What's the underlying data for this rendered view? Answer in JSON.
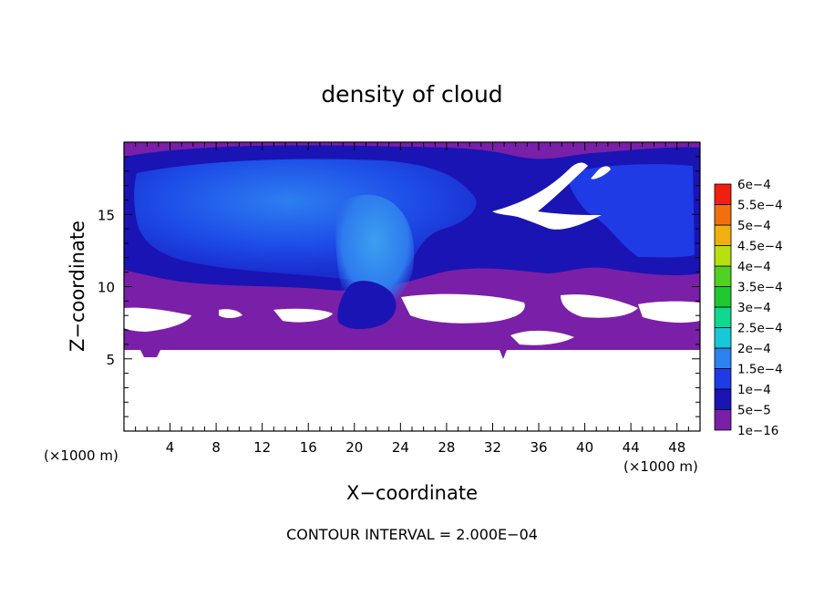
{
  "chart_data": {
    "type": "heatmap",
    "title": "density of cloud",
    "xlabel": "X−coordinate",
    "ylabel": "Z−coordinate",
    "x_unit_label": "(×1000 m)",
    "y_unit_label": "(×1000 m)",
    "footer": "CONTOUR INTERVAL = 2.000E−04",
    "xlim": [
      0,
      50
    ],
    "ylim": [
      0,
      20
    ],
    "x_ticks": [
      4,
      8,
      12,
      16,
      20,
      24,
      28,
      32,
      36,
      40,
      44,
      48
    ],
    "y_ticks": [
      5,
      10,
      15
    ],
    "colorbar": {
      "levels": [
        "1e−16",
        "5e−5",
        "1e−4",
        "1.5e−4",
        "2e−4",
        "2.5e−4",
        "3e−4",
        "3.5e−4",
        "4e−4",
        "4.5e−4",
        "5e−4",
        "5.5e−4",
        "6e−4"
      ],
      "colors": [
        "#7a1fa8",
        "#1a14b4",
        "#1e3be6",
        "#2c82f0",
        "#18c8d8",
        "#10d890",
        "#20c830",
        "#50d020",
        "#b8e010",
        "#f0b010",
        "#f07010",
        "#f02010",
        "#f08080"
      ]
    },
    "regions": {
      "cloud_base_z": 5.6,
      "cloud_top_z": 20,
      "anvil": {
        "x": [
          0,
          50
        ],
        "z": [
          10,
          20
        ],
        "value": "1e−4"
      },
      "updraft_core": {
        "x_center": 20.5,
        "z": [
          7.5,
          16
        ],
        "value": "1.5e−4"
      },
      "clear_air_below_z": 5.6
    }
  }
}
